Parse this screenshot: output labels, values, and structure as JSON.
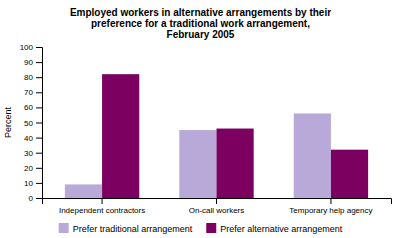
{
  "chart_data": {
    "type": "bar",
    "title": "Employed workers in alternative arrangements by their\npreference for a traditional work arrangement,\nFebruary 2005",
    "categories": [
      "Independent contractors",
      "On-call workers",
      "Temporary help agency"
    ],
    "series": [
      {
        "name": "Prefer traditional arrangement",
        "color": "#b8a9d9",
        "values": [
          9,
          45,
          56
        ]
      },
      {
        "name": "Prefer alternative arrangement",
        "color": "#7b0060",
        "values": [
          82,
          46,
          32
        ]
      }
    ],
    "ylabel": "Percent",
    "ylim": [
      0,
      100
    ],
    "yticks": [
      0,
      10,
      20,
      30,
      40,
      50,
      60,
      70,
      80,
      90,
      100
    ],
    "grid": false,
    "legend": "bottom"
  }
}
